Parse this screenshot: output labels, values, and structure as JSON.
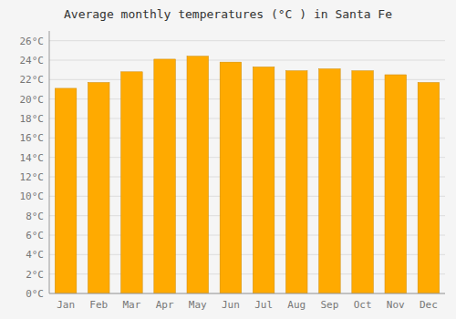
{
  "chart_data": {
    "type": "bar",
    "title": "Average monthly temperatures (°C ) in Santa Fe",
    "categories": [
      "Jan",
      "Feb",
      "Mar",
      "Apr",
      "May",
      "Jun",
      "Jul",
      "Aug",
      "Sep",
      "Oct",
      "Nov",
      "Dec"
    ],
    "values": [
      21.1,
      21.7,
      22.8,
      24.1,
      24.4,
      23.8,
      23.3,
      22.9,
      23.1,
      22.9,
      22.5,
      21.7
    ],
    "color": "#FFAA00",
    "ylim": [
      0,
      27
    ],
    "yticks": [
      {
        "value": 0,
        "label": "0°C"
      },
      {
        "value": 2,
        "label": "2°C"
      },
      {
        "value": 4,
        "label": "4°C"
      },
      {
        "value": 6,
        "label": "6°C"
      },
      {
        "value": 8,
        "label": "8°C"
      },
      {
        "value": 10,
        "label": "10°C"
      },
      {
        "value": 12,
        "label": "12°C"
      },
      {
        "value": 14,
        "label": "14°C"
      },
      {
        "value": 16,
        "label": "16°C"
      },
      {
        "value": 18,
        "label": "18°C"
      },
      {
        "value": 20,
        "label": "20°C"
      },
      {
        "value": 22,
        "label": "22°C"
      },
      {
        "value": 24,
        "label": "24°C"
      },
      {
        "value": 26,
        "label": "26°C"
      }
    ],
    "grid": true
  }
}
